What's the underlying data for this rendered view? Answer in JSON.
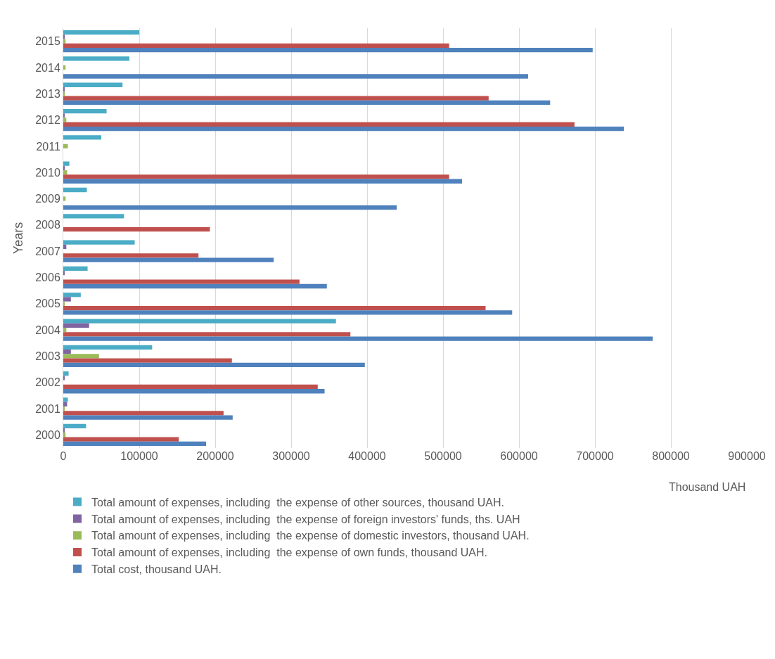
{
  "chart_data": {
    "type": "bar",
    "orientation": "horizontal",
    "xlabel": "Thousand UAH",
    "ylabel": "Years",
    "categories": [
      "2015",
      "2014",
      "2013",
      "2012",
      "2011",
      "2010",
      "2009",
      "2008",
      "2007",
      "2006",
      "2005",
      "2004",
      "2003",
      "2002",
      "2001",
      "2000"
    ],
    "series": [
      {
        "name": "Total amount of expenses, including  the expense of other sources, thousand UAH.",
        "color": "#4bacc6",
        "values": [
          100000,
          87000,
          78000,
          57000,
          50000,
          8000,
          31000,
          80000,
          94000,
          32000,
          23000,
          359000,
          117000,
          7000,
          6000,
          30000
        ]
      },
      {
        "name": "Total amount of expenses, including  the expense of foreign investors' funds, ths. UAH",
        "color": "#8064a2",
        "values": [
          2000,
          null,
          1000,
          1000,
          null,
          2000,
          null,
          null,
          4000,
          1000,
          10000,
          34000,
          10000,
          1000,
          5000,
          1000
        ]
      },
      {
        "name": "Total amount of expenses, including  the expense of domestic investors, thousand UAH.",
        "color": "#9bbb59",
        "values": [
          3000,
          3000,
          2000,
          4000,
          6000,
          5000,
          3000,
          null,
          null,
          null,
          1000,
          4000,
          47000,
          null,
          1000,
          3000
        ]
      },
      {
        "name": "Total amount of expenses, including  the expense of own funds, thousand UAH.",
        "color": "#c0504d",
        "values": [
          508000,
          null,
          560000,
          673000,
          null,
          508000,
          null,
          193000,
          178000,
          311000,
          556000,
          378000,
          222000,
          335000,
          211000,
          152000
        ]
      },
      {
        "name": "Total cost, thousand UAH.",
        "color": "#4f81bd",
        "values": [
          697000,
          612000,
          641000,
          738000,
          null,
          525000,
          439000,
          null,
          277000,
          347000,
          591000,
          776000,
          397000,
          344000,
          223000,
          188000
        ]
      }
    ],
    "xlim": [
      0,
      900000
    ],
    "xticks": [
      0,
      100000,
      200000,
      300000,
      400000,
      500000,
      600000,
      700000,
      800000,
      900000
    ],
    "grid": "x",
    "legend": "bottom"
  }
}
